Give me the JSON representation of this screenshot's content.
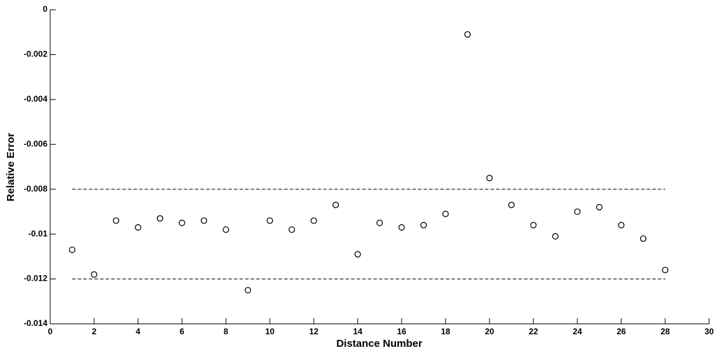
{
  "chart_data": {
    "type": "scatter",
    "x_label": "Distance Number",
    "y_label": "Relative Error",
    "x": [
      1,
      2,
      3,
      4,
      5,
      6,
      7,
      8,
      9,
      10,
      11,
      12,
      13,
      14,
      15,
      16,
      17,
      18,
      19,
      20,
      21,
      22,
      23,
      24,
      25,
      26,
      27,
      28
    ],
    "series": [
      {
        "color": "#000000",
        "values": [
          -0.0107,
          -0.0118,
          -0.0094,
          -0.0097,
          -0.0093,
          -0.0095,
          -0.0094,
          -0.0098,
          -0.0125,
          -0.0094,
          -0.0098,
          -0.0094,
          -0.0087,
          -0.0109,
          -0.0095,
          -0.0097,
          -0.0096,
          -0.0091,
          -0.0011,
          -0.0075,
          -0.0087,
          -0.0096,
          -0.0101,
          -0.009,
          -0.0088,
          -0.0096,
          -0.0102,
          -0.0116
        ]
      }
    ],
    "reference_lines": [
      {
        "y": -0.008,
        "x": [
          1,
          28
        ]
      },
      {
        "y": -0.012,
        "x": [
          1,
          28
        ]
      }
    ],
    "xlim": [
      0,
      30
    ],
    "xticks": [
      0,
      2,
      4,
      6,
      8,
      10,
      12,
      14,
      16,
      18,
      20,
      22,
      24,
      26,
      28,
      30
    ],
    "ylim": [
      -0.014,
      0
    ],
    "yticks": [
      0,
      -0.002,
      -0.004,
      -0.006,
      -0.008,
      -0.01,
      -0.012,
      -0.014
    ]
  }
}
